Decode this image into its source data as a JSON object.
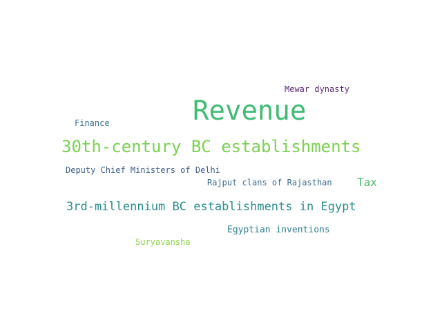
{
  "words": {
    "revenue": {
      "text": "Revenue",
      "color": "#3fbc73"
    },
    "c30th": {
      "text": "30th-century BC establishments",
      "color": "#7ad151"
    },
    "mil3rd": {
      "text": "3rd-millennium BC establishments in Egypt",
      "color": "#2a8c8b"
    },
    "mewar": {
      "text": "Mewar dynasty",
      "color": "#5b2a70"
    },
    "finance": {
      "text": "Finance",
      "color": "#3b6e8f"
    },
    "deputy": {
      "text": "Deputy Chief Ministers of Delhi",
      "color": "#3b5e8c"
    },
    "rajput": {
      "text": "Rajput clans of Rajasthan",
      "color": "#3a6a8e"
    },
    "tax": {
      "text": "Tax",
      "color": "#4dbb6e"
    },
    "egyptian": {
      "text": "Egyptian inventions",
      "color": "#2e7e8e"
    },
    "surya": {
      "text": "Suryavansha",
      "color": "#8ed64a"
    }
  }
}
